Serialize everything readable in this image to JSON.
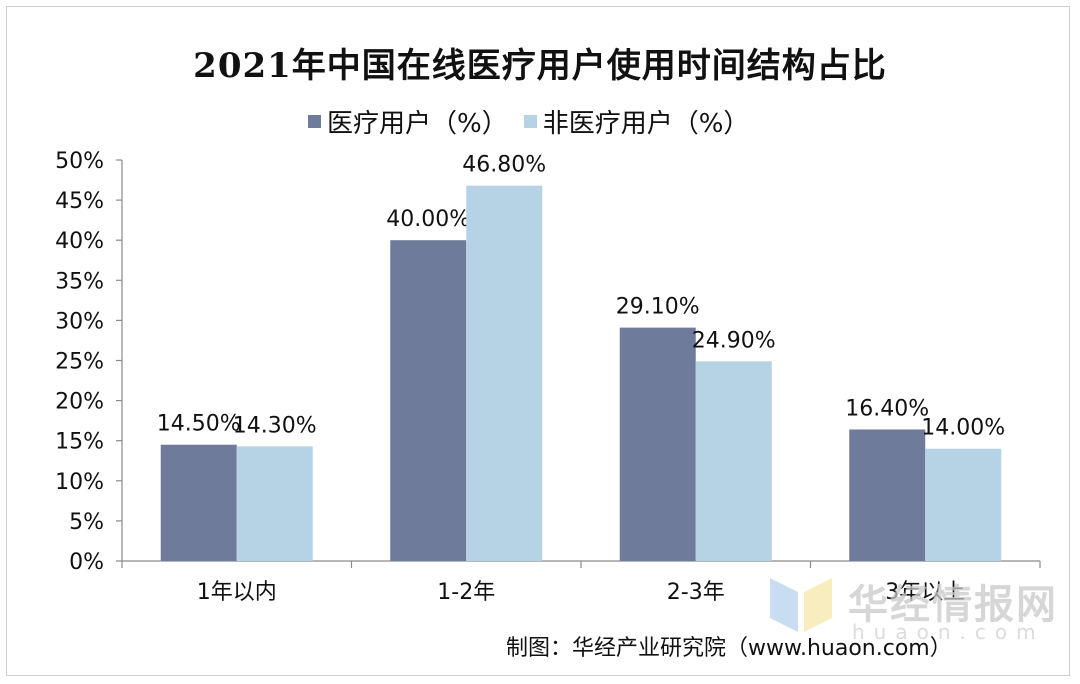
{
  "chart_data": {
    "type": "bar",
    "title": "2021年中国在线医疗用户使用时间结构占比",
    "categories": [
      "1年以内",
      "1-2年",
      "2-3年",
      "3年以上"
    ],
    "series": [
      {
        "name": "医疗用户（%）",
        "values": [
          14.5,
          40.0,
          29.1,
          16.4
        ],
        "labels": [
          "14.50%",
          "40.00%",
          "29.10%",
          "16.40%"
        ],
        "color": "#6e7b9b"
      },
      {
        "name": "非医疗用户（%）",
        "values": [
          14.3,
          46.8,
          24.9,
          14.0
        ],
        "labels": [
          "14.30%",
          "46.80%",
          "24.90%",
          "14.00%"
        ],
        "color": "#b6d3e5"
      }
    ],
    "ylim": [
      0,
      50
    ],
    "yticks": [
      "0%",
      "5%",
      "10%",
      "15%",
      "20%",
      "25%",
      "30%",
      "35%",
      "40%",
      "45%",
      "50%"
    ],
    "grid": false,
    "legend": "top"
  },
  "credit": "制图：华经产业研究院（www.huaon.com）",
  "watermark": {
    "text": "华经情报网",
    "sub": "huaon.com"
  }
}
